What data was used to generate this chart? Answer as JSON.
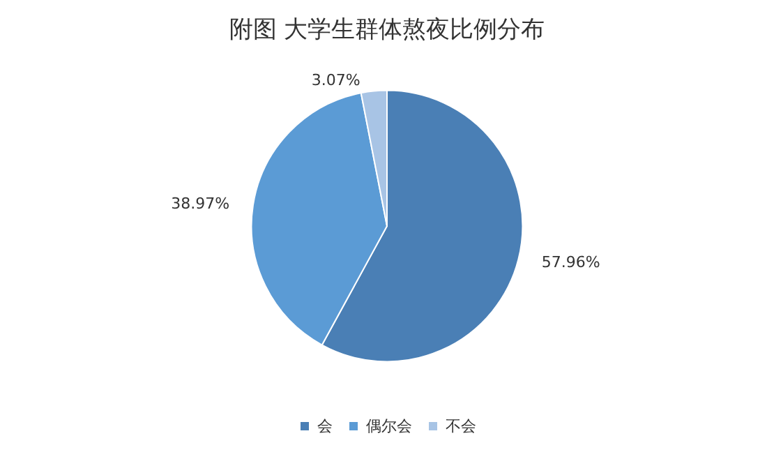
{
  "chart_data": {
    "type": "pie",
    "title": "附图 大学生群体熬夜比例分布",
    "categories": [
      "会",
      "偶尔会",
      "不会"
    ],
    "values": [
      57.96,
      38.97,
      3.07
    ],
    "colors": [
      "#4a7fb5",
      "#5b9bd5",
      "#a8c4e5"
    ],
    "value_labels": [
      "57.96%",
      "38.97%",
      "3.07%"
    ],
    "legend": "bottom"
  }
}
